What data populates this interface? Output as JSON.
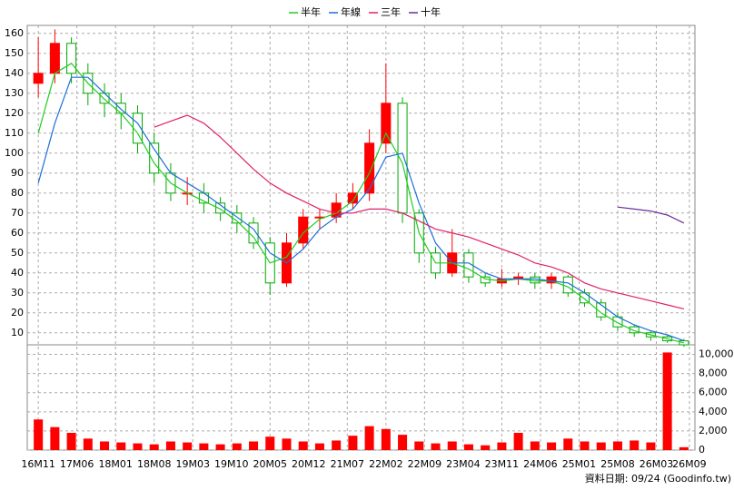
{
  "chart_data": {
    "type": "candlestick",
    "legend": [
      "半年",
      "年線",
      "三年",
      "十年"
    ],
    "x": [
      0,
      3,
      6,
      9,
      12,
      15,
      18,
      21,
      24,
      27,
      30,
      33,
      36,
      39,
      42,
      45,
      48,
      51,
      54,
      57,
      60,
      63,
      66,
      69,
      72,
      75,
      78,
      81,
      84,
      87,
      90,
      93,
      96,
      99,
      102,
      105,
      108,
      111,
      114,
      117
    ],
    "open": [
      135,
      140,
      155,
      140,
      130,
      125,
      120,
      105,
      90,
      80,
      80,
      75,
      70,
      65,
      55,
      35,
      55,
      68,
      68,
      75,
      80,
      105,
      125,
      70,
      50,
      40,
      50,
      38,
      35,
      37,
      38,
      35,
      38,
      30,
      25,
      18,
      13,
      10,
      8,
      6
    ],
    "high": [
      158,
      162,
      158,
      145,
      135,
      130,
      124,
      110,
      95,
      88,
      85,
      78,
      74,
      68,
      58,
      60,
      72,
      72,
      80,
      85,
      112,
      145,
      128,
      72,
      53,
      62,
      52,
      40,
      42,
      40,
      40,
      40,
      39,
      32,
      27,
      20,
      14,
      11,
      9,
      7
    ],
    "low": [
      128,
      135,
      135,
      124,
      118,
      112,
      100,
      85,
      76,
      74,
      70,
      66,
      60,
      52,
      29,
      33,
      52,
      62,
      65,
      72,
      76,
      100,
      65,
      45,
      37,
      38,
      35,
      33,
      33,
      34,
      32,
      32,
      28,
      23,
      16,
      11,
      8,
      6,
      5,
      3
    ],
    "close": [
      140,
      155,
      140,
      130,
      125,
      120,
      105,
      90,
      80,
      80,
      75,
      70,
      65,
      55,
      35,
      55,
      68,
      68,
      75,
      80,
      105,
      125,
      70,
      50,
      40,
      50,
      38,
      35,
      37,
      38,
      35,
      38,
      30,
      25,
      18,
      13,
      10,
      8,
      6,
      4
    ],
    "up_color": "#ff0000",
    "down_color": "#00aa00",
    "volume": [
      3200,
      2400,
      1800,
      1200,
      900,
      800,
      700,
      600,
      900,
      800,
      700,
      600,
      700,
      900,
      1400,
      1200,
      900,
      700,
      1000,
      1500,
      2500,
      2200,
      1600,
      900,
      700,
      900,
      600,
      500,
      800,
      1800,
      900,
      800,
      1200,
      900,
      800,
      900,
      1000,
      800,
      10200,
      300
    ],
    "volume_color": "#ff0000",
    "series": [
      {
        "name": "半年",
        "color": "#22cc22",
        "values": [
          110,
          140,
          145,
          135,
          127,
          120,
          110,
          95,
          85,
          80,
          76,
          72,
          66,
          58,
          45,
          48,
          60,
          67,
          70,
          76,
          90,
          110,
          95,
          60,
          45,
          45,
          42,
          37,
          36,
          37,
          36,
          36,
          33,
          27,
          20,
          15,
          11,
          9,
          7,
          5
        ]
      },
      {
        "name": "年線",
        "color": "#1e6fd9",
        "values": [
          85,
          115,
          138,
          138,
          130,
          122,
          115,
          102,
          90,
          85,
          80,
          74,
          68,
          62,
          50,
          45,
          52,
          62,
          68,
          72,
          82,
          98,
          100,
          75,
          55,
          45,
          45,
          40,
          37,
          37,
          37,
          36,
          35,
          30,
          24,
          18,
          14,
          11,
          9,
          6
        ]
      },
      {
        "name": "三年",
        "color": "#e0206a",
        "values": [
          null,
          null,
          null,
          null,
          null,
          null,
          null,
          113,
          116,
          119,
          115,
          108,
          100,
          92,
          85,
          80,
          76,
          72,
          70,
          70,
          72,
          72,
          70,
          66,
          62,
          60,
          58,
          55,
          52,
          49,
          45,
          43,
          40,
          35,
          32,
          30,
          28,
          26,
          24,
          22
        ]
      },
      {
        "name": "十年",
        "color": "#6a2c9c",
        "values": [
          null,
          null,
          null,
          null,
          null,
          null,
          null,
          null,
          null,
          null,
          null,
          null,
          null,
          null,
          null,
          null,
          null,
          null,
          null,
          null,
          null,
          null,
          null,
          null,
          null,
          null,
          null,
          null,
          null,
          null,
          null,
          null,
          null,
          null,
          null,
          73,
          72,
          71,
          69,
          65
        ]
      }
    ],
    "xlim": [
      -2,
      119
    ],
    "xticks": [
      {
        "value": 0,
        "label": "16M11"
      },
      {
        "value": 7,
        "label": "17M06"
      },
      {
        "value": 14,
        "label": "18M01"
      },
      {
        "value": 21,
        "label": "18M08"
      },
      {
        "value": 28,
        "label": "19M03"
      },
      {
        "value": 35,
        "label": "19M10"
      },
      {
        "value": 42,
        "label": "20M05"
      },
      {
        "value": 49,
        "label": "20M12"
      },
      {
        "value": 56,
        "label": "21M07"
      },
      {
        "value": 63,
        "label": "22M02"
      },
      {
        "value": 70,
        "label": "22M09"
      },
      {
        "value": 77,
        "label": "23M04"
      },
      {
        "value": 84,
        "label": "23M11"
      },
      {
        "value": 91,
        "label": "24M06"
      },
      {
        "value": 98,
        "label": "25M01"
      },
      {
        "value": 105,
        "label": "25M08"
      },
      {
        "value": 112,
        "label": "26M03"
      },
      {
        "value": 118,
        "label": "26M09"
      }
    ],
    "ylim": [
      4,
      164
    ],
    "yticks": [
      10,
      20,
      30,
      40,
      50,
      60,
      70,
      80,
      90,
      100,
      110,
      120,
      130,
      140,
      150,
      160
    ],
    "y2lim": [
      0,
      11000
    ],
    "y2ticks": [
      0,
      {
        "value": 2000,
        "label": "2,000"
      },
      {
        "value": 4000,
        "label": "4,000"
      },
      {
        "value": 6000,
        "label": "6,000"
      },
      {
        "value": 8000,
        "label": "8,000"
      },
      {
        "value": 10000,
        "label": "10,000"
      }
    ],
    "grid": true,
    "footnote": "資料日期: 09/24 (Goodinfo.tw)"
  }
}
